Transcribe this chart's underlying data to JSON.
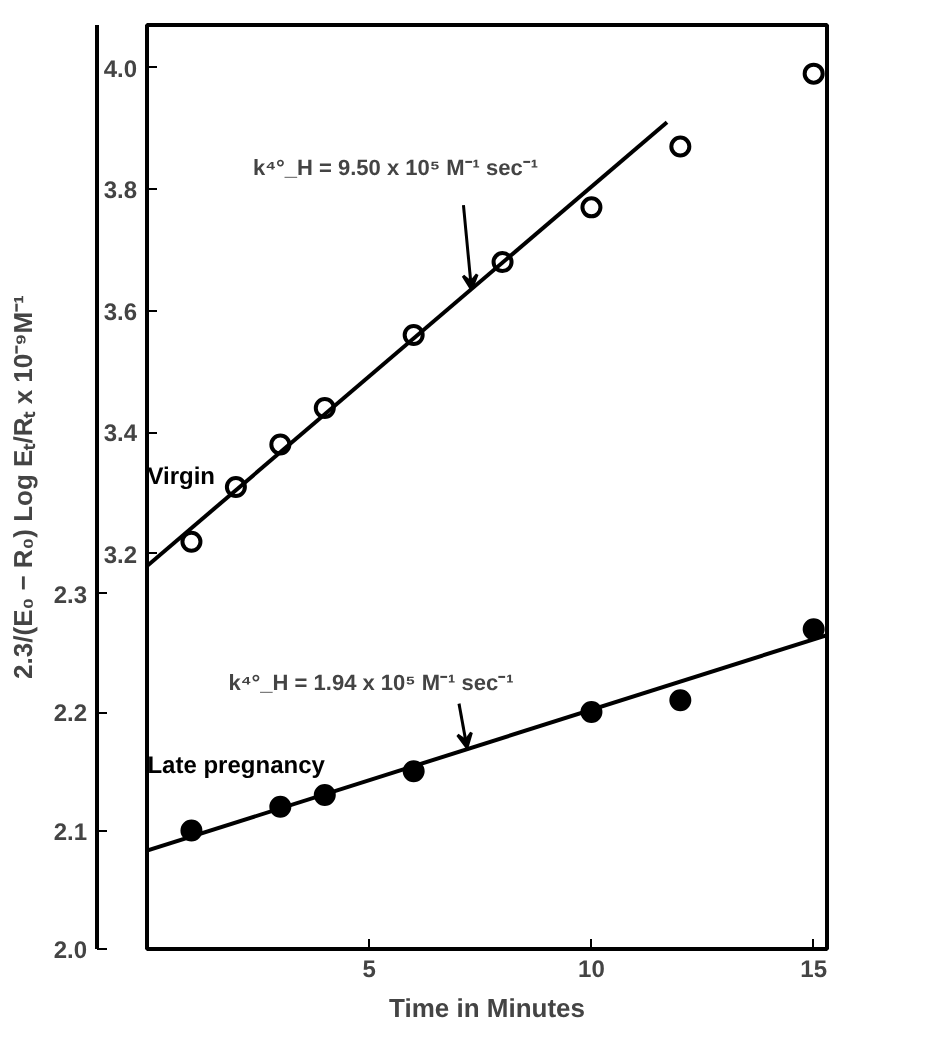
{
  "chart_data": {
    "type": "scatter",
    "xlabel": "Time in Minutes",
    "ylabel": "2.3/(E₀ − R₀) Log Eₜ/Rₜ x 10⁻⁹M⁻¹",
    "xlim": [
      0,
      15.3
    ],
    "xticks": [
      5,
      10,
      15
    ],
    "ylim": [
      2.0,
      2.78
    ],
    "yticks": [
      {
        "value": 2.0,
        "label": "2.0"
      },
      2.1,
      2.2,
      2.3
    ],
    "y2lim": [
      2.55,
      4.07
    ],
    "y2ticks": [
      3.2,
      3.4,
      3.6,
      3.8,
      {
        "value": 4.0,
        "label": "4.0"
      }
    ],
    "grid": false,
    "series": [
      {
        "name": "Virgin",
        "marker": "circle",
        "axis": "y2",
        "color": "#000000",
        "x": [
          1,
          2,
          3,
          4,
          6,
          8,
          10,
          12,
          15
        ],
        "values": [
          3.22,
          3.31,
          3.38,
          3.44,
          3.56,
          3.68,
          3.77,
          3.87,
          3.99
        ]
      },
      {
        "type": "line",
        "marker": "none",
        "axis": "y2",
        "color": "#000000",
        "x": [
          0,
          11.7
        ],
        "values": [
          3.18,
          3.91
        ]
      },
      {
        "name": "Late pregnancy",
        "marker": "circle",
        "color": "#000000",
        "x": [
          1,
          3,
          4,
          6,
          10,
          12,
          15
        ],
        "values": [
          2.1,
          2.12,
          2.13,
          2.15,
          2.2,
          2.21,
          2.27
        ]
      },
      {
        "type": "line",
        "marker": "none",
        "color": "#000000",
        "x": [
          0,
          15.3
        ],
        "values": [
          2.083,
          2.265
        ]
      }
    ],
    "annotations": [
      {
        "text": "k⁴°_H = 9.50 x 10⁵ M⁻¹ sec⁻¹",
        "x": 7.3,
        "y": 2.557
      },
      {
        "text": "k⁴°_H = 1.94 x 10⁵ M⁻¹ sec⁻¹",
        "x": 7.2,
        "y": 2.17
      }
    ]
  }
}
